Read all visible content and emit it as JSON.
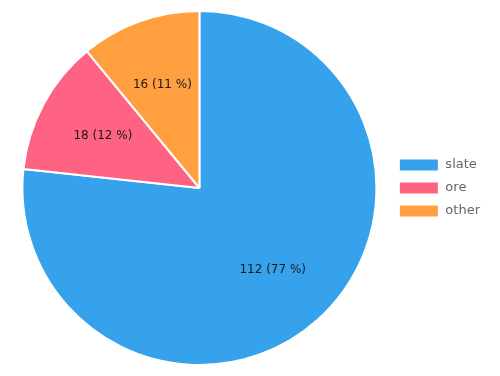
{
  "chart_data": {
    "type": "pie",
    "categories": [
      "slate",
      "ore",
      "other"
    ],
    "values": [
      112,
      18,
      16
    ],
    "value_labels": [
      "112 (77 %)",
      "18 (12 %)",
      "16 (11 %)"
    ],
    "data_labels": true,
    "legend": "right"
  }
}
